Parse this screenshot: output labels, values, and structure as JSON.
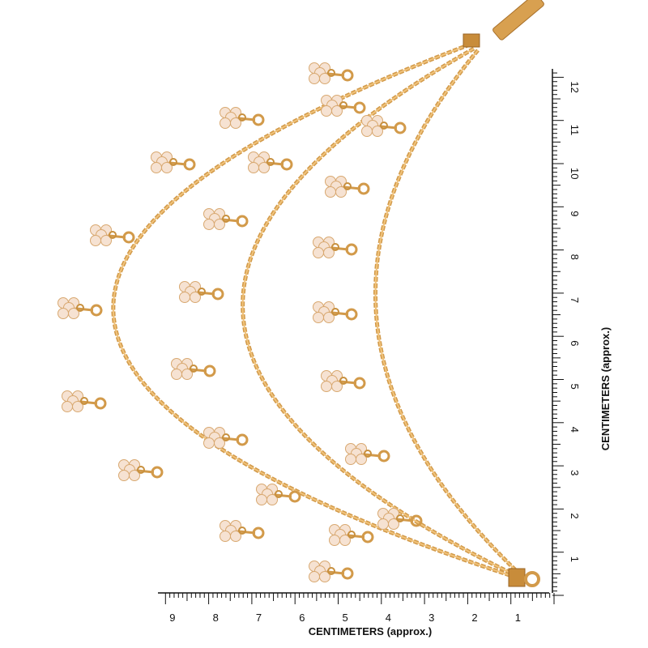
{
  "ruler_x": {
    "labels": [
      "9",
      "8",
      "7",
      "6",
      "5",
      "4",
      "3",
      "2",
      "1"
    ],
    "title": "CENTIMETERS (approx.)"
  },
  "ruler_y": {
    "labels": [
      "1",
      "2",
      "3",
      "4",
      "5",
      "6",
      "7",
      "8",
      "9",
      "10",
      "11",
      "12"
    ],
    "title": "CENTIMETERS (approx.)"
  }
}
